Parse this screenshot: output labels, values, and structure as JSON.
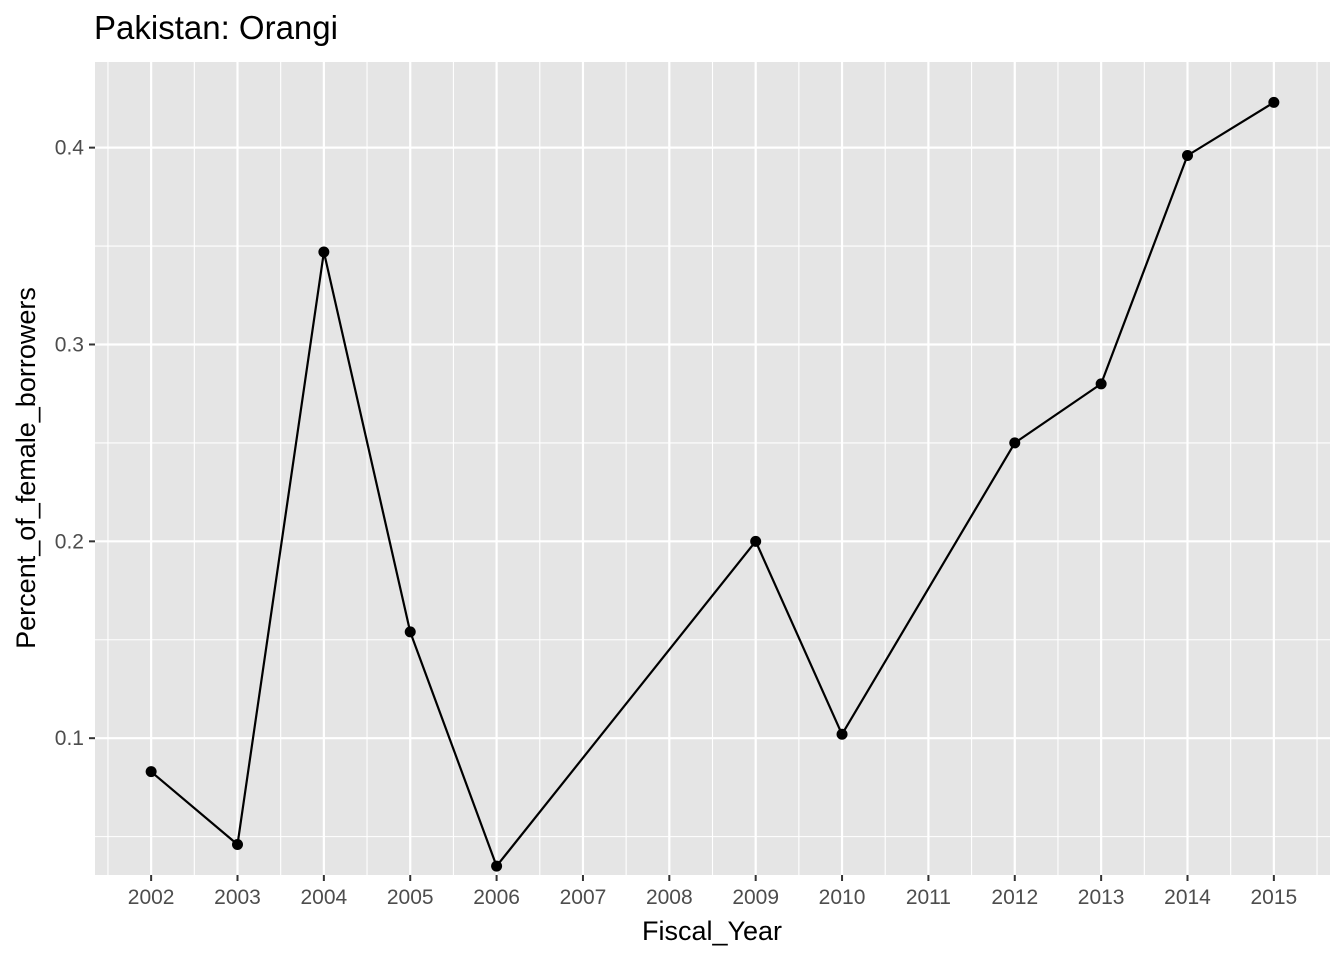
{
  "chart_data": {
    "type": "line",
    "title": "Pakistan:  Orangi",
    "xlabel": "Fiscal_Year",
    "ylabel": "Percent_of_female_borrowers",
    "x_ticks": [
      "2002",
      "2003",
      "2004",
      "2005",
      "2006",
      "2007",
      "2008",
      "2009",
      "2010",
      "2011",
      "2012",
      "2013",
      "2014",
      "2015"
    ],
    "y_ticks": [
      "0.1",
      "0.2",
      "0.3",
      "0.4"
    ],
    "xlim": [
      2001.35,
      2015.65
    ],
    "ylim": [
      0.0305,
      0.4435
    ],
    "grid": true,
    "legend": "none",
    "series": [
      {
        "x": [
          2002,
          2003,
          2004,
          2005,
          2006,
          2009,
          2010,
          2012,
          2013,
          2014,
          2015
        ],
        "y": [
          0.083,
          0.046,
          0.347,
          0.154,
          0.035,
          0.2,
          0.102,
          0.25,
          0.28,
          0.396,
          0.423
        ],
        "color": "#000000"
      }
    ],
    "panel_background": "#e5e5e5",
    "grid_color": "#ffffff"
  }
}
